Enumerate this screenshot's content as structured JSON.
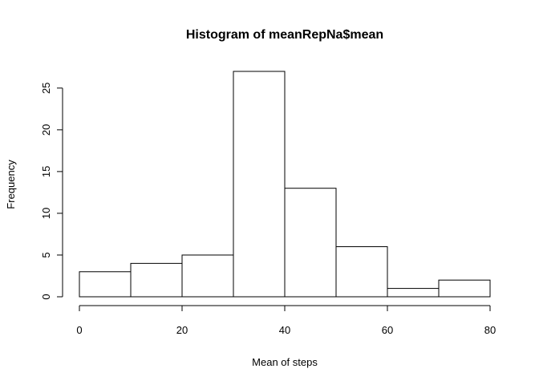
{
  "chart_data": {
    "type": "bar",
    "title": "Histogram of meanRepNa$mean",
    "xlabel": "Mean of steps",
    "ylabel": "Frequency",
    "bins": [
      {
        "from": 0,
        "to": 10,
        "count": 3
      },
      {
        "from": 10,
        "to": 20,
        "count": 4
      },
      {
        "from": 20,
        "to": 30,
        "count": 5
      },
      {
        "from": 30,
        "to": 40,
        "count": 27
      },
      {
        "from": 40,
        "to": 50,
        "count": 13
      },
      {
        "from": 50,
        "to": 60,
        "count": 6
      },
      {
        "from": 60,
        "to": 70,
        "count": 1
      },
      {
        "from": 70,
        "to": 80,
        "count": 2
      }
    ],
    "xlim": [
      0,
      80
    ],
    "ylim": [
      0,
      27
    ],
    "x_ticks": [
      0,
      20,
      40,
      60,
      80
    ],
    "y_ticks": [
      0,
      5,
      10,
      15,
      20,
      25
    ],
    "grid": false,
    "legend": "none"
  }
}
